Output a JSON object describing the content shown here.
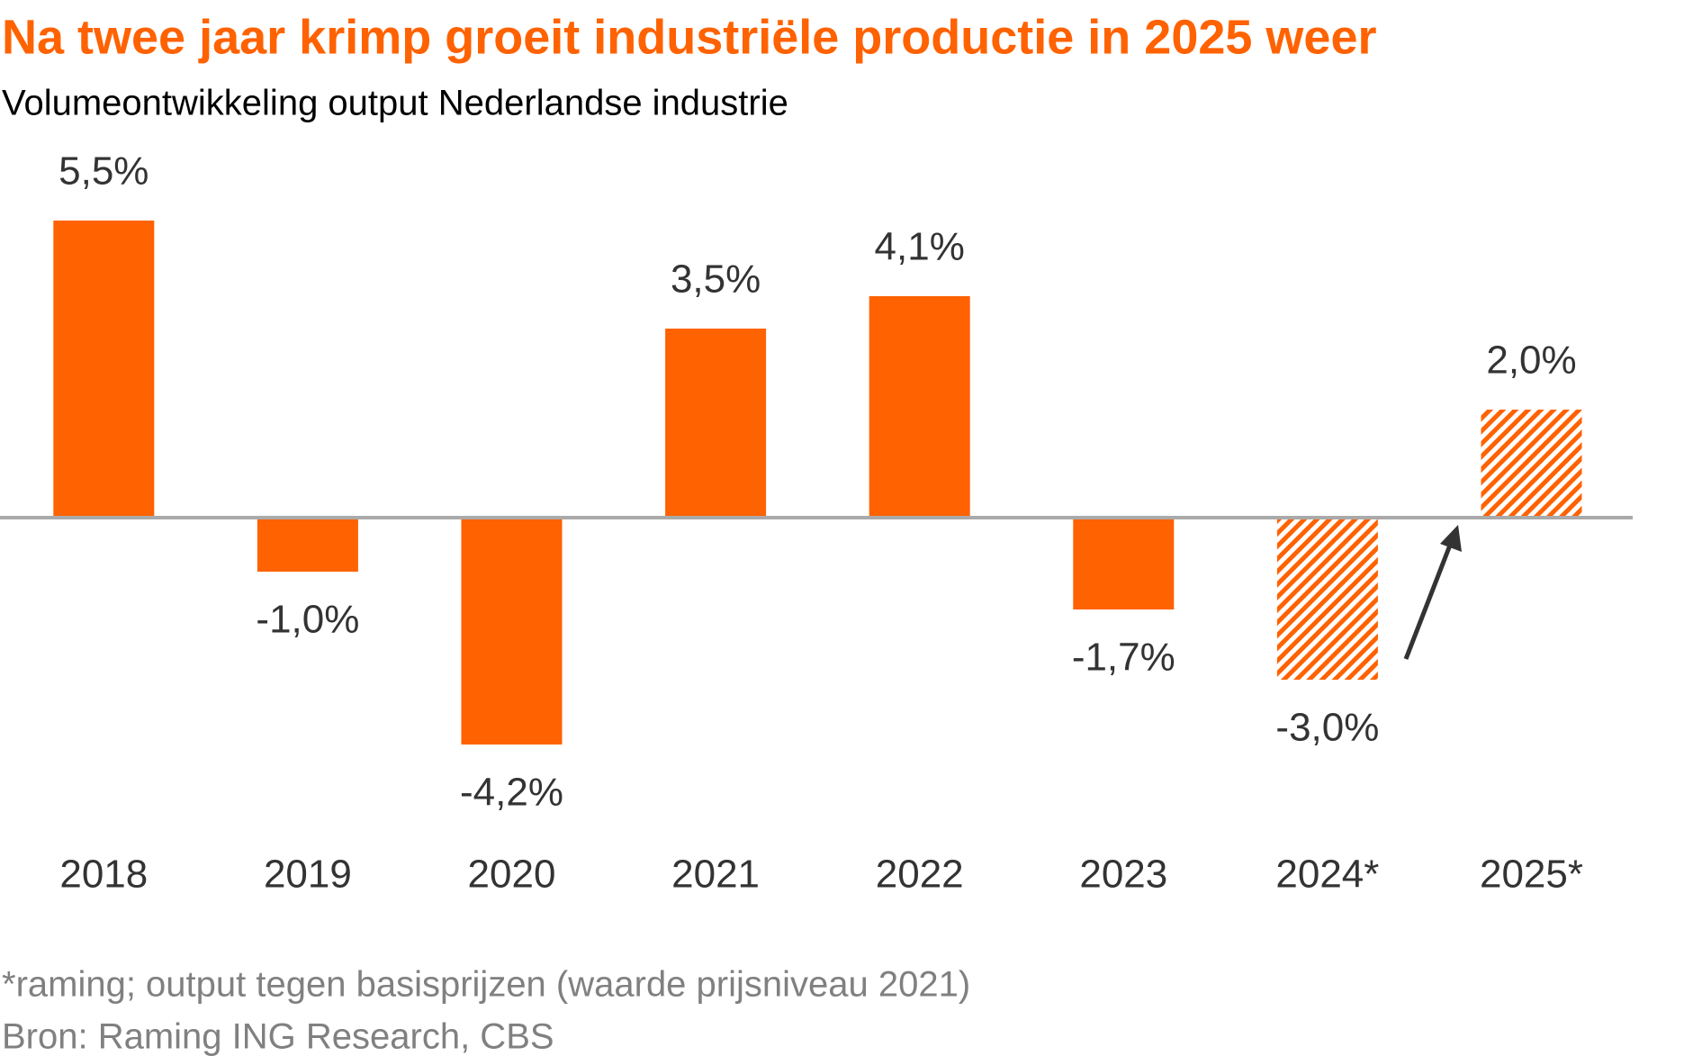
{
  "chart_data": {
    "type": "bar",
    "title": "Na twee jaar krimp groeit industriële productie in 2025 weer",
    "subtitle": "Volumeontwikkeling output Nederlandse industrie",
    "categories": [
      "2018",
      "2019",
      "2020",
      "2021",
      "2022",
      "2023",
      "2024*",
      "2025*"
    ],
    "values": [
      5.5,
      -1.0,
      -4.2,
      3.5,
      4.1,
      -1.7,
      -3.0,
      2.0
    ],
    "value_labels": [
      "5,5%",
      "-1,0%",
      "-4,2%",
      "3,5%",
      "4,1%",
      "-1,7%",
      "-3,0%",
      "2,0%"
    ],
    "patterns": [
      "solid",
      "solid",
      "solid",
      "solid",
      "solid",
      "solid",
      "hatched",
      "hatched"
    ],
    "color": "#ff6200",
    "notes": [
      "*raming; output tegen basisprijzen (waarde prijsniveau 2021)",
      "Bron: Raming ING Research, CBS"
    ]
  }
}
